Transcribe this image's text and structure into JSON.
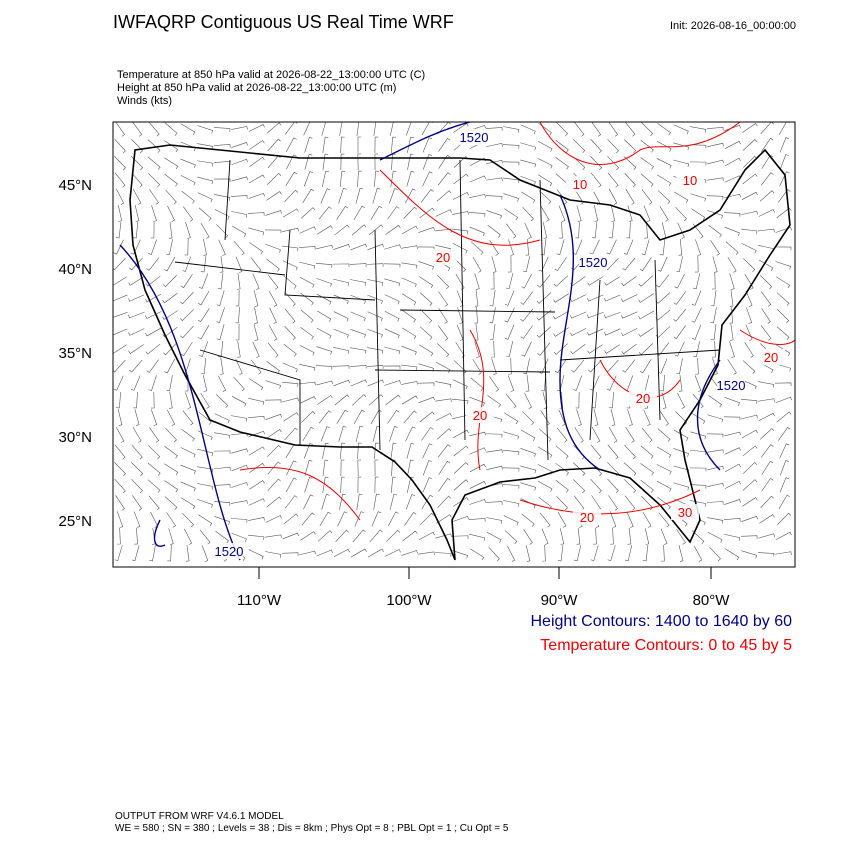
{
  "header": {
    "title": "IWFAQRP Contiguous US Real Time WRF",
    "init": "Init: 2026-08-16_00:00:00",
    "fields": [
      "Temperature at 850 hPa valid at 2026-08-22_13:00:00 UTC   (C)",
      "Height at 850 hPa valid at 2026-08-22_13:00:00 UTC   (m)",
      "Winds   (kts)"
    ]
  },
  "map": {
    "lat_labels": [
      "45°N",
      "40°N",
      "35°N",
      "30°N",
      "25°N"
    ],
    "lon_labels": [
      "110°W",
      "100°W",
      "90°W",
      "80°W"
    ],
    "height_contour_labels": [
      "1520",
      "1520",
      "1520",
      "1520"
    ],
    "temperature_contour_labels": [
      "10",
      "10",
      "20",
      "20",
      "20",
      "20",
      "20",
      "30"
    ]
  },
  "legend": {
    "height": "Height Contours: 1400 to 1640 by 60",
    "temperature": "Temperature Contours: 0 to 45 by 5"
  },
  "footer": [
    "OUTPUT FROM WRF V4.6.1 MODEL",
    "WE = 580 ; SN = 380 ; Levels = 38 ; Dis = 8km ; Phys Opt = 8 ; PBL Opt = 1 ; Cu Opt = 5"
  ]
}
